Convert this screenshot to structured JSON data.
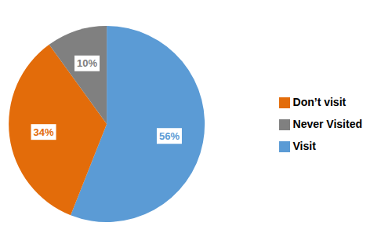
{
  "chart_data": {
    "type": "pie",
    "categories": [
      "Visit",
      "Don’t visit",
      "Never Visited"
    ],
    "values": [
      56,
      34,
      10
    ],
    "value_labels": [
      "56%",
      "34%",
      "10%"
    ],
    "colors": [
      "#5B9BD5",
      "#E36C0A",
      "#808080"
    ],
    "data_labels": true,
    "legend": "right"
  }
}
